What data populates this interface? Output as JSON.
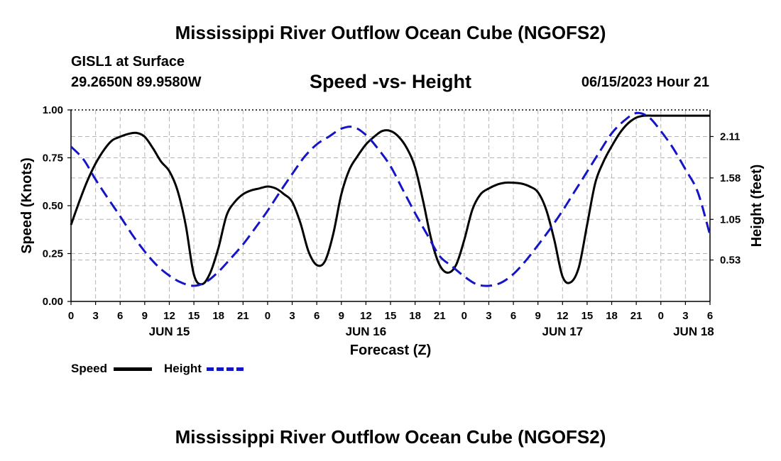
{
  "header": {
    "main_title": "Mississippi River Outflow Ocean Cube (NGOFS2)",
    "station": "GISL1 at Surface",
    "coords": "29.2650N  89.9580W",
    "subtitle": "Speed -vs- Height",
    "datetime": "06/15/2023 Hour 21"
  },
  "footer": {
    "title": "Mississippi River Outflow Ocean Cube (NGOFS2)"
  },
  "colors": {
    "speed": "#000000",
    "height": "#1515c8",
    "grid": "#b4b4b4"
  },
  "chart_data": {
    "type": "line",
    "xlabel": "Forecast (Z)",
    "ylabel_left": "Speed (Knots)",
    "ylabel_right": "Height (feet)",
    "x_range": [
      0,
      78
    ],
    "x_tick_labels": [
      "0",
      "3",
      "6",
      "9",
      "12",
      "15",
      "18",
      "21",
      "0",
      "3",
      "6",
      "9",
      "12",
      "15",
      "18",
      "21",
      "0",
      "3",
      "6",
      "9",
      "12",
      "15",
      "18",
      "21",
      "0",
      "3",
      "6"
    ],
    "day_labels": [
      {
        "x": 12,
        "label": "JUN 15"
      },
      {
        "x": 36,
        "label": "JUN 16"
      },
      {
        "x": 60,
        "label": "JUN 17"
      },
      {
        "x": 76,
        "label": "JUN 18"
      }
    ],
    "ylim_left": [
      0,
      1.0
    ],
    "y_ticks_left": [
      0.0,
      0.25,
      0.5,
      0.75,
      1.0
    ],
    "y_tick_labels_left": [
      "0.00",
      "0.25",
      "0.50",
      "0.75",
      "1.00"
    ],
    "ylim_right": [
      0.0,
      2.45
    ],
    "y_ticks_right": [
      0.53,
      1.05,
      1.58,
      2.11
    ],
    "y_tick_labels_right": [
      "0.53",
      "1.05",
      "1.58",
      "2.11"
    ],
    "series": [
      {
        "name": "Speed",
        "axis": "left",
        "style": "solid",
        "x": [
          0,
          1,
          2,
          3,
          4,
          5,
          6,
          7,
          8,
          9,
          10,
          11,
          12,
          13,
          14,
          15,
          16,
          17,
          18,
          19,
          20,
          21,
          22,
          23,
          24,
          25,
          26,
          27,
          28,
          29,
          30,
          31,
          32,
          33,
          34,
          35,
          36,
          37,
          38,
          39,
          40,
          41,
          42,
          43,
          44,
          45,
          46,
          47,
          48,
          49,
          50,
          51,
          52,
          53,
          54,
          55,
          56,
          57,
          58,
          59,
          60,
          61,
          62,
          63,
          64,
          65,
          66,
          67,
          68,
          69,
          70,
          71,
          72,
          73,
          74,
          75,
          76,
          77,
          78
        ],
        "values": [
          0.4,
          0.52,
          0.63,
          0.72,
          0.79,
          0.84,
          0.86,
          0.875,
          0.88,
          0.86,
          0.8,
          0.73,
          0.68,
          0.58,
          0.4,
          0.14,
          0.09,
          0.15,
          0.28,
          0.45,
          0.52,
          0.56,
          0.58,
          0.59,
          0.6,
          0.59,
          0.56,
          0.52,
          0.41,
          0.26,
          0.19,
          0.21,
          0.35,
          0.56,
          0.69,
          0.76,
          0.82,
          0.86,
          0.89,
          0.89,
          0.86,
          0.8,
          0.7,
          0.52,
          0.32,
          0.19,
          0.15,
          0.19,
          0.32,
          0.48,
          0.56,
          0.59,
          0.61,
          0.62,
          0.62,
          0.615,
          0.6,
          0.57,
          0.48,
          0.32,
          0.13,
          0.1,
          0.18,
          0.4,
          0.62,
          0.73,
          0.81,
          0.88,
          0.93,
          0.96,
          0.97,
          0.97,
          0.97,
          0.97,
          0.97,
          0.97,
          0.97,
          0.97,
          0.97
        ]
      },
      {
        "name": "Height",
        "axis": "right",
        "style": "dashed",
        "x": [
          0,
          1.5,
          3,
          4.5,
          6,
          7.5,
          9,
          10.5,
          12,
          13.5,
          15,
          16.5,
          18,
          19.5,
          21,
          22.5,
          24,
          25.5,
          27,
          28.5,
          30,
          31.5,
          33,
          34.5,
          36,
          37.5,
          39,
          40.5,
          42,
          43.5,
          45,
          46.5,
          48,
          49.5,
          51,
          52.5,
          54,
          55.5,
          57,
          58.5,
          60,
          61.5,
          63,
          64.5,
          66,
          67.5,
          69,
          70.5,
          72,
          73.5,
          75,
          76.5,
          78
        ],
        "values": [
          1.98,
          1.82,
          1.56,
          1.32,
          1.09,
          0.85,
          0.64,
          0.46,
          0.33,
          0.24,
          0.2,
          0.25,
          0.38,
          0.55,
          0.73,
          0.94,
          1.16,
          1.4,
          1.63,
          1.85,
          2.01,
          2.11,
          2.21,
          2.23,
          2.13,
          1.95,
          1.73,
          1.43,
          1.13,
          0.85,
          0.58,
          0.45,
          0.32,
          0.22,
          0.2,
          0.24,
          0.35,
          0.52,
          0.72,
          0.93,
          1.16,
          1.41,
          1.66,
          1.91,
          2.15,
          2.31,
          2.41,
          2.36,
          2.18,
          1.96,
          1.69,
          1.4,
          0.85
        ]
      }
    ],
    "legend": [
      {
        "label": "Speed",
        "style": "solid"
      },
      {
        "label": "Height",
        "style": "dashed"
      }
    ]
  }
}
